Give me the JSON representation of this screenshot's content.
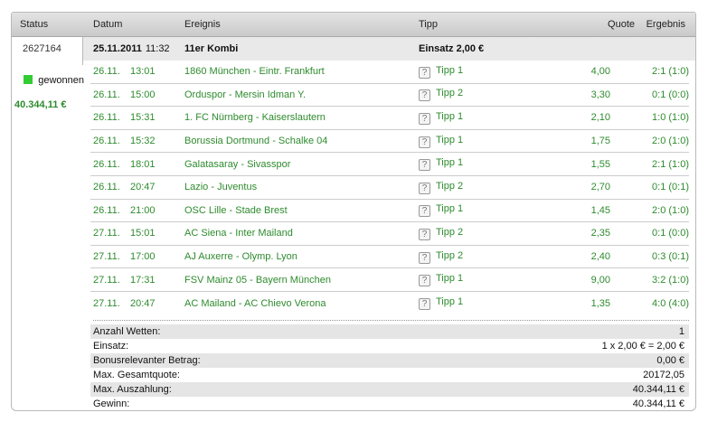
{
  "colors": {
    "green_text": "#2e8b2e",
    "won_indicator": "#33cc33",
    "header_gradient_top": "#e4e4e4",
    "header_gradient_bottom": "#c9c9c9",
    "info_row_bg": "#e9e9e9",
    "summary_band_bg": "#e5e5e5"
  },
  "icons": {
    "help": "?",
    "won_square": "green-square"
  },
  "header": {
    "status": "Status",
    "datum": "Datum",
    "ereignis": "Ereignis",
    "tipp": "Tipp",
    "quote": "Quote",
    "ergebnis": "Ergebnis"
  },
  "bet": {
    "id": "2627164",
    "date": "25.11.2011",
    "time": "11:32",
    "title": "11er Kombi",
    "stake_label": "Einsatz",
    "stake_value": "2,00 €",
    "status_label": "gewonnen",
    "winnings": "40.344,11 €"
  },
  "legs": [
    {
      "date": "26.11.",
      "time": "13:01",
      "event": "1860 München - Eintr. Frankfurt",
      "tip": "Tipp 1",
      "quote": "4,00",
      "result": "2:1 (1:0)"
    },
    {
      "date": "26.11.",
      "time": "15:00",
      "event": "Orduspor - Mersin Idman Y.",
      "tip": "Tipp 2",
      "quote": "3,30",
      "result": "0:1 (0:0)"
    },
    {
      "date": "26.11.",
      "time": "15:31",
      "event": "1. FC Nürnberg - Kaiserslautern",
      "tip": "Tipp 1",
      "quote": "2,10",
      "result": "1:0 (1:0)"
    },
    {
      "date": "26.11.",
      "time": "15:32",
      "event": "Borussia Dortmund - Schalke 04",
      "tip": "Tipp 1",
      "quote": "1,75",
      "result": "2:0 (1:0)"
    },
    {
      "date": "26.11.",
      "time": "18:01",
      "event": "Galatasaray - Sivasspor",
      "tip": "Tipp 1",
      "quote": "1,55",
      "result": "2:1 (1:0)"
    },
    {
      "date": "26.11.",
      "time": "20:47",
      "event": "Lazio - Juventus",
      "tip": "Tipp 2",
      "quote": "2,70",
      "result": "0:1 (0:1)"
    },
    {
      "date": "26.11.",
      "time": "21:00",
      "event": "OSC Lille - Stade Brest",
      "tip": "Tipp 1",
      "quote": "1,45",
      "result": "2:0 (1:0)"
    },
    {
      "date": "27.11.",
      "time": "15:01",
      "event": "AC Siena - Inter Mailand",
      "tip": "Tipp 2",
      "quote": "2,35",
      "result": "0:1 (0:0)"
    },
    {
      "date": "27.11.",
      "time": "17:00",
      "event": "AJ Auxerre - Olymp. Lyon",
      "tip": "Tipp 2",
      "quote": "2,40",
      "result": "0:3 (0:1)"
    },
    {
      "date": "27.11.",
      "time": "17:31",
      "event": "FSV Mainz 05 - Bayern München",
      "tip": "Tipp 1",
      "quote": "9,00",
      "result": "3:2 (1:0)"
    },
    {
      "date": "27.11.",
      "time": "20:47",
      "event": "AC Mailand - AC Chievo Verona",
      "tip": "Tipp 1",
      "quote": "1,35",
      "result": "4:0 (4:0)"
    }
  ],
  "summary": [
    {
      "label": "Anzahl Wetten:",
      "value": "1"
    },
    {
      "label": "Einsatz:",
      "value": "1 x 2,00 € = 2,00 €"
    },
    {
      "label": "Bonusrelevanter Betrag:",
      "value": "0,00 €"
    },
    {
      "label": "Max. Gesamtquote:",
      "value": "20172,05"
    },
    {
      "label": "Max. Auszahlung:",
      "value": "40.344,11 €"
    },
    {
      "label": "Gewinn:",
      "value": "40.344,11 €"
    }
  ]
}
